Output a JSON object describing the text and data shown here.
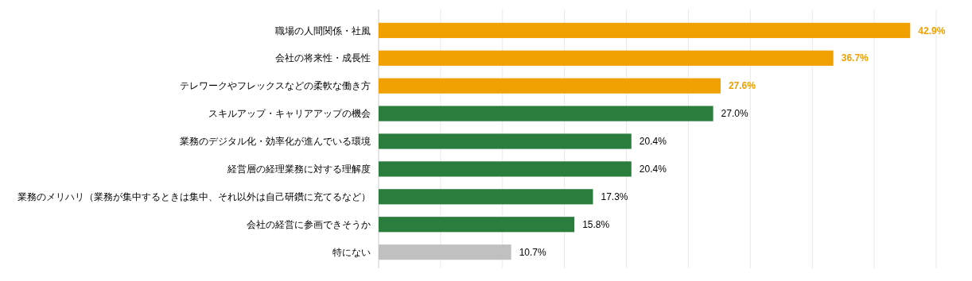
{
  "chart_data": {
    "type": "bar",
    "orientation": "horizontal",
    "categories": [
      "職場の人間関係・社風",
      "会社の将来性・成長性",
      "テレワークやフレックスなどの柔軟な働き方",
      "スキルアップ・キャリアアップの機会",
      "業務のデジタル化・効率化が進んでいる環境",
      "経営層の経理業務に対する理解度",
      "業務のメリハリ（業務が集中するときは集中、それ以外は自己研鑽に充てるなど）",
      "会社の経営に参画できそうか",
      "特にない"
    ],
    "values": [
      42.9,
      36.7,
      27.6,
      27.0,
      20.4,
      20.4,
      17.3,
      15.8,
      10.7
    ],
    "colors": [
      "#f0a000",
      "#f0a000",
      "#f0a000",
      "#2a7d3c",
      "#2a7d3c",
      "#2a7d3c",
      "#2a7d3c",
      "#2a7d3c",
      "#c0c0c0"
    ],
    "value_labels": [
      "42.9%",
      "36.7%",
      "27.6%",
      "27.0%",
      "20.4%",
      "20.4%",
      "17.3%",
      "15.8%",
      "10.7%"
    ],
    "xlim": [
      0,
      45
    ],
    "xticks": [
      {
        "value": 0,
        "label": null
      },
      {
        "value": 5,
        "label": null
      },
      {
        "value": 10,
        "label": null
      },
      {
        "value": 15,
        "label": null
      },
      {
        "value": 20,
        "label": null
      },
      {
        "value": 25,
        "label": null
      },
      {
        "value": 30,
        "label": null
      },
      {
        "value": 35,
        "label": null
      },
      {
        "value": 40,
        "label": null
      },
      {
        "value": 45,
        "label": null
      }
    ],
    "grid": "x",
    "tick_labels": "y"
  }
}
